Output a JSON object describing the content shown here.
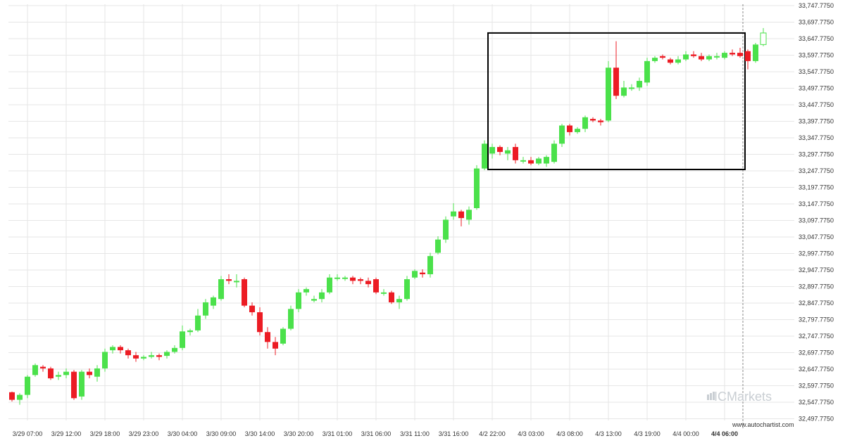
{
  "chart_data": {
    "type": "candlestick",
    "title": "",
    "xlabel": "",
    "ylabel": "",
    "ylim": [
      32472.775,
      33772.775
    ],
    "y_ticks": [
      "33,747.7750",
      "33,697.7750",
      "33,647.7750",
      "33,597.7750",
      "33,547.7750",
      "33,497.7750",
      "33,447.7750",
      "33,397.7750",
      "33,347.7750",
      "33,297.7750",
      "33,247.7750",
      "33,197.7750",
      "33,147.7750",
      "33,097.7750",
      "33,047.7750",
      "32,997.7750",
      "32,947.7750",
      "32,897.7750",
      "32,847.7750",
      "32,797.7750",
      "32,747.7750",
      "32,697.7750",
      "32,647.7750",
      "32,597.7750",
      "32,547.7750",
      "32,497.7750"
    ],
    "x_ticks": [
      {
        "label": "3/29 07:00",
        "index": 2
      },
      {
        "label": "3/29 12:00",
        "index": 7
      },
      {
        "label": "3/29 18:00",
        "index": 12
      },
      {
        "label": "3/29 23:00",
        "index": 17
      },
      {
        "label": "3/30 04:00",
        "index": 22
      },
      {
        "label": "3/30 09:00",
        "index": 27
      },
      {
        "label": "3/30 14:00",
        "index": 32
      },
      {
        "label": "3/30 20:00",
        "index": 37
      },
      {
        "label": "3/31 01:00",
        "index": 42
      },
      {
        "label": "3/31 06:00",
        "index": 47
      },
      {
        "label": "3/31 11:00",
        "index": 52
      },
      {
        "label": "3/31 16:00",
        "index": 57
      },
      {
        "label": "4/2 22:00",
        "index": 62
      },
      {
        "label": "4/3 03:00",
        "index": 67
      },
      {
        "label": "4/3 08:00",
        "index": 72
      },
      {
        "label": "4/3 13:00",
        "index": 77
      },
      {
        "label": "4/3 19:00",
        "index": 82
      },
      {
        "label": "4/4 00:00",
        "index": 87
      },
      {
        "label": "4/4 06:00",
        "index": 92,
        "bold": true
      }
    ],
    "candles": [
      [
        32578,
        32555,
        32580,
        32550
      ],
      [
        32555,
        32570,
        32575,
        32540
      ],
      [
        32570,
        32625,
        32630,
        32560
      ],
      [
        32630,
        32660,
        32665,
        32625
      ],
      [
        32655,
        32650,
        32660,
        32640
      ],
      [
        32650,
        32620,
        32655,
        32615
      ],
      [
        32625,
        32630,
        32640,
        32615
      ],
      [
        32630,
        32640,
        32650,
        32620
      ],
      [
        32640,
        32560,
        32645,
        32555
      ],
      [
        32565,
        32640,
        32645,
        32555
      ],
      [
        32640,
        32630,
        32650,
        32620
      ],
      [
        32625,
        32650,
        32660,
        32610
      ],
      [
        32650,
        32700,
        32710,
        32640
      ],
      [
        32705,
        32715,
        32720,
        32695
      ],
      [
        32715,
        32705,
        32720,
        32695
      ],
      [
        32705,
        32690,
        32710,
        32680
      ],
      [
        32690,
        32680,
        32700,
        32670
      ],
      [
        32680,
        32685,
        32690,
        32675
      ],
      [
        32685,
        32690,
        32700,
        32680
      ],
      [
        32690,
        32685,
        32695,
        32675
      ],
      [
        32688,
        32700,
        32705,
        32680
      ],
      [
        32700,
        32712,
        32720,
        32695
      ],
      [
        32712,
        32762,
        32780,
        32705
      ],
      [
        32760,
        32765,
        32770,
        32750
      ],
      [
        32765,
        32810,
        32830,
        32760
      ],
      [
        32810,
        32850,
        32860,
        32800
      ],
      [
        32840,
        32865,
        32870,
        32830
      ],
      [
        32860,
        32920,
        32930,
        32855
      ],
      [
        32920,
        32915,
        32935,
        32905
      ],
      [
        32915,
        32915,
        32935,
        32895
      ],
      [
        32920,
        32840,
        32925,
        32835
      ],
      [
        32840,
        32820,
        32850,
        32810
      ],
      [
        32820,
        32760,
        32835,
        32750
      ],
      [
        32760,
        32730,
        32775,
        32710
      ],
      [
        32730,
        32710,
        32745,
        32690
      ],
      [
        32725,
        32770,
        32775,
        32720
      ],
      [
        32770,
        32830,
        32840,
        32765
      ],
      [
        32830,
        32880,
        32890,
        32820
      ],
      [
        32880,
        32890,
        32895,
        32870
      ],
      [
        32855,
        32860,
        32870,
        32850
      ],
      [
        32860,
        32880,
        32890,
        32850
      ],
      [
        32880,
        32925,
        32935,
        32875
      ],
      [
        32925,
        32925,
        32935,
        32915
      ],
      [
        32925,
        32925,
        32930,
        32915
      ],
      [
        32925,
        32915,
        32930,
        32905
      ],
      [
        32920,
        32915,
        32925,
        32905
      ],
      [
        32915,
        32905,
        32925,
        32895
      ],
      [
        32920,
        32880,
        32925,
        32875
      ],
      [
        32880,
        32880,
        32890,
        32870
      ],
      [
        32880,
        32850,
        32885,
        32845
      ],
      [
        32850,
        32860,
        32870,
        32830
      ],
      [
        32860,
        32920,
        32930,
        32855
      ],
      [
        32925,
        32945,
        32950,
        32920
      ],
      [
        32940,
        32935,
        32950,
        32925
      ],
      [
        32935,
        32990,
        33000,
        32925
      ],
      [
        33000,
        33040,
        33050,
        32995
      ],
      [
        33040,
        33100,
        33110,
        33030
      ],
      [
        33110,
        33125,
        33150,
        33100
      ],
      [
        33125,
        33105,
        33130,
        33080
      ],
      [
        33100,
        33130,
        33140,
        33085
      ],
      [
        33135,
        33255,
        33265,
        33130
      ],
      [
        33255,
        33330,
        33340,
        33250
      ],
      [
        33300,
        33320,
        33330,
        33285
      ],
      [
        33320,
        33305,
        33325,
        33295
      ],
      [
        33300,
        33310,
        33320,
        33280
      ],
      [
        33320,
        33280,
        33330,
        33270
      ],
      [
        33280,
        33280,
        33290,
        33270
      ],
      [
        33280,
        33270,
        33290,
        33265
      ],
      [
        33270,
        33285,
        33290,
        33265
      ],
      [
        33270,
        33290,
        33295,
        33260
      ],
      [
        33275,
        33330,
        33340,
        33270
      ],
      [
        33330,
        33385,
        33390,
        33320
      ],
      [
        33385,
        33365,
        33390,
        33355
      ],
      [
        33365,
        33375,
        33380,
        33360
      ],
      [
        33375,
        33410,
        33415,
        33365
      ],
      [
        33405,
        33400,
        33410,
        33395
      ],
      [
        33400,
        33395,
        33405,
        33385
      ],
      [
        33400,
        33560,
        33580,
        33395
      ],
      [
        33560,
        33475,
        33640,
        33465
      ],
      [
        33475,
        33500,
        33520,
        33470
      ],
      [
        33500,
        33500,
        33510,
        33490
      ],
      [
        33500,
        33520,
        33530,
        33490
      ],
      [
        33515,
        33580,
        33590,
        33505
      ],
      [
        33580,
        33590,
        33595,
        33575
      ],
      [
        33595,
        33590,
        33600,
        33585
      ],
      [
        33585,
        33575,
        33590,
        33570
      ],
      [
        33575,
        33585,
        33595,
        33570
      ],
      [
        33585,
        33600,
        33610,
        33580
      ],
      [
        33600,
        33595,
        33610,
        33590
      ],
      [
        33595,
        33585,
        33605,
        33580
      ],
      [
        33585,
        33595,
        33600,
        33580
      ],
      [
        33595,
        33595,
        33605,
        33585
      ],
      [
        33590,
        33605,
        33610,
        33585
      ],
      [
        33605,
        33600,
        33615,
        33595
      ],
      [
        33605,
        33595,
        33620,
        33590
      ],
      [
        33610,
        33580,
        33615,
        33555
      ],
      [
        33580,
        33630,
        33635,
        33575
      ],
      [
        33630,
        33665,
        33680,
        33625
      ]
    ],
    "colors": {
      "up": "#4be14b",
      "down": "#ec1c24",
      "box": "#000000",
      "grid": "#e6e6e6"
    },
    "highlight_box": {
      "start_index": 62,
      "end_index": 94,
      "y_high": 33665,
      "y_low": 33252
    },
    "current_time_marker_index": 95,
    "grid": true,
    "watermark": "ICMarkets",
    "credit": "www.autochartist.com"
  }
}
